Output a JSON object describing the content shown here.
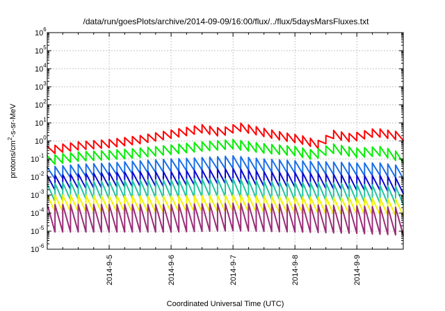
{
  "chart_data": {
    "type": "line",
    "title": "/data/run/goesPlots/archive/2014-09-09/16:00/flux/../flux/5daysMarsFluxes.txt",
    "xlabel": "Coordinated Universal Time (UTC)",
    "ylabel": "protons/cm2-s-sr-MeV",
    "ylabel_parts": {
      "main": "protons/cm",
      "sup": "2",
      "rest": "-s-sr-MeV"
    },
    "yscale": "log",
    "ylim_exp": [
      -6,
      6
    ],
    "ytick_base": "10",
    "ytick_exponents": [
      "-6",
      "-5",
      "-4",
      "-3",
      "-2",
      "-1",
      "0",
      "1",
      "2",
      "3",
      "4",
      "5",
      "6"
    ],
    "x_is_date": true,
    "x_start": "2014-09-04 00:00",
    "xlim_days": [
      0,
      5.75
    ],
    "xticks": [
      {
        "label": "2014-9-5",
        "day": 1
      },
      {
        "label": "2014-9-6",
        "day": 2
      },
      {
        "label": "2014-9-7",
        "day": 3
      },
      {
        "label": "2014-9-8",
        "day": 4
      },
      {
        "label": "2014-9-9",
        "day": 5
      }
    ],
    "grid": true,
    "legend": "none",
    "sawtooth_period_hours": 3,
    "series": [
      {
        "color": "#ff0000",
        "period_days": 0.125,
        "dip_fraction": 0.35,
        "envelope": [
          [
            0.0,
            0.5
          ],
          [
            0.5,
            0.9
          ],
          [
            1.0,
            1.2
          ],
          [
            1.5,
            2.0
          ],
          [
            2.0,
            4.0
          ],
          [
            2.3,
            6.0
          ],
          [
            2.5,
            8.0
          ],
          [
            2.8,
            5.0
          ],
          [
            3.1,
            10.0
          ],
          [
            3.5,
            5.0
          ],
          [
            3.8,
            3.0
          ],
          [
            4.1,
            2.0
          ],
          [
            4.4,
            1.0
          ],
          [
            4.6,
            4.0
          ],
          [
            4.9,
            2.5
          ],
          [
            5.3,
            5.0
          ],
          [
            5.6,
            3.5
          ],
          [
            5.75,
            3.0
          ]
        ]
      },
      {
        "color": "#00ee00",
        "period_days": 0.125,
        "dip_fraction": 0.3,
        "envelope": [
          [
            0.0,
            0.15
          ],
          [
            0.5,
            0.25
          ],
          [
            1.0,
            0.3
          ],
          [
            1.5,
            0.4
          ],
          [
            2.0,
            0.6
          ],
          [
            2.5,
            0.9
          ],
          [
            3.0,
            1.2
          ],
          [
            3.5,
            0.7
          ],
          [
            4.0,
            0.5
          ],
          [
            4.3,
            0.3
          ],
          [
            4.6,
            0.7
          ],
          [
            5.0,
            0.4
          ],
          [
            5.4,
            0.5
          ],
          [
            5.75,
            0.2
          ]
        ]
      },
      {
        "color": "#1a6fe8",
        "period_days": 0.125,
        "dip_fraction": 0.2,
        "envelope": [
          [
            0.0,
            0.035
          ],
          [
            0.5,
            0.05
          ],
          [
            1.0,
            0.06
          ],
          [
            1.5,
            0.08
          ],
          [
            2.0,
            0.1
          ],
          [
            2.5,
            0.12
          ],
          [
            3.0,
            0.15
          ],
          [
            3.5,
            0.1
          ],
          [
            4.0,
            0.08
          ],
          [
            4.5,
            0.07
          ],
          [
            5.0,
            0.06
          ],
          [
            5.4,
            0.06
          ],
          [
            5.75,
            0.04
          ]
        ]
      },
      {
        "color": "#0a0ad0",
        "period_days": 0.125,
        "dip_fraction": 0.15,
        "envelope": [
          [
            0.0,
            0.012
          ],
          [
            0.5,
            0.015
          ],
          [
            1.0,
            0.018
          ],
          [
            1.5,
            0.02
          ],
          [
            2.0,
            0.02
          ],
          [
            2.5,
            0.025
          ],
          [
            3.0,
            0.03
          ],
          [
            3.5,
            0.02
          ],
          [
            4.0,
            0.018
          ],
          [
            4.5,
            0.015
          ],
          [
            5.0,
            0.012
          ],
          [
            5.4,
            0.012
          ],
          [
            5.75,
            0.008
          ]
        ]
      },
      {
        "color": "#22c4a0",
        "period_days": 0.125,
        "dip_fraction": 0.1,
        "envelope": [
          [
            0.0,
            0.004
          ],
          [
            0.5,
            0.006
          ],
          [
            1.0,
            0.006
          ],
          [
            1.5,
            0.007
          ],
          [
            2.0,
            0.007
          ],
          [
            2.5,
            0.008
          ],
          [
            3.0,
            0.008
          ],
          [
            3.5,
            0.006
          ],
          [
            4.0,
            0.005
          ],
          [
            4.5,
            0.005
          ],
          [
            5.0,
            0.004
          ],
          [
            5.75,
            0.003
          ]
        ]
      },
      {
        "color": "#f2f200",
        "period_days": 0.125,
        "dip_fraction": 0.12,
        "envelope": [
          [
            0.0,
            0.001
          ],
          [
            0.5,
            0.001
          ],
          [
            1.0,
            0.0009
          ],
          [
            2.0,
            0.0009
          ],
          [
            3.0,
            0.001
          ],
          [
            4.0,
            0.0008
          ],
          [
            5.0,
            0.0007
          ],
          [
            5.75,
            0.0006
          ]
        ]
      },
      {
        "color": "#9a2c78",
        "period_days": 0.125,
        "dip_fraction": 0.03,
        "envelope": [
          [
            0.0,
            0.0003
          ],
          [
            1.0,
            0.0003
          ],
          [
            2.0,
            0.0003
          ],
          [
            3.0,
            0.00035
          ],
          [
            4.0,
            0.0003
          ],
          [
            5.0,
            0.00025
          ],
          [
            5.75,
            0.0002
          ]
        ]
      }
    ]
  }
}
